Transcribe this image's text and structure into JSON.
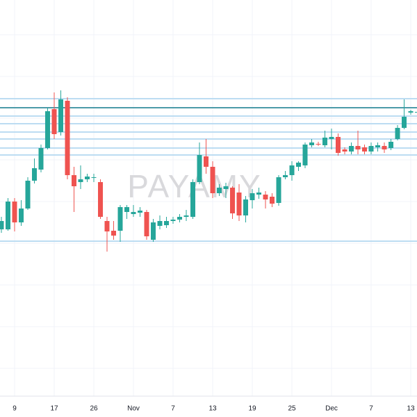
{
  "chart_data": {
    "type": "candlestick",
    "watermark": "PAYAMY",
    "categories": [
      null,
      null,
      "9",
      null,
      null,
      null,
      null,
      null,
      "17",
      null,
      null,
      null,
      null,
      null,
      "26",
      null,
      null,
      null,
      null,
      null,
      "Nov",
      null,
      null,
      null,
      null,
      null,
      "7",
      null,
      null,
      null,
      null,
      null,
      "13",
      null,
      null,
      null,
      null,
      null,
      "19",
      null,
      null,
      null,
      null,
      null,
      "25",
      null,
      null,
      null,
      null,
      null,
      "Dec",
      null,
      null,
      null,
      null,
      null,
      "7",
      null,
      null,
      null,
      null,
      null,
      "13",
      null
    ],
    "open": [
      270,
      270,
      310,
      280,
      300,
      340,
      356,
      387,
      443,
      410,
      455,
      348,
      338,
      342,
      344,
      338,
      282,
      268,
      268,
      295,
      292,
      294,
      295,
      255,
      275,
      276,
      282,
      284,
      288,
      288,
      338,
      375,
      360,
      322,
      328,
      330,
      323,
      290,
      312,
      320,
      320,
      317,
      308,
      345,
      348,
      360,
      362,
      391,
      393,
      391,
      400,
      403,
      385,
      382,
      390,
      388,
      382,
      388,
      390,
      387,
      400,
      416,
      438,
      438
    ],
    "high": [
      288,
      315,
      315,
      312,
      345,
      372,
      392,
      445,
      467,
      470,
      460,
      360,
      362,
      350,
      350,
      342,
      288,
      282,
      305,
      305,
      305,
      302,
      298,
      285,
      290,
      288,
      288,
      292,
      298,
      342,
      395,
      400,
      368,
      335,
      337,
      332,
      335,
      318,
      328,
      330,
      325,
      322,
      348,
      354,
      368,
      368,
      395,
      400,
      396,
      412,
      415,
      408,
      388,
      395,
      412,
      392,
      395,
      395,
      395,
      400,
      420,
      457,
      442,
      442
    ],
    "low": [
      265,
      268,
      267,
      275,
      298,
      336,
      352,
      385,
      400,
      405,
      342,
      295,
      328,
      338,
      338,
      285,
      238,
      255,
      252,
      285,
      288,
      288,
      255,
      252,
      270,
      272,
      278,
      280,
      282,
      285,
      335,
      350,
      315,
      318,
      315,
      285,
      282,
      280,
      300,
      314,
      300,
      302,
      304,
      342,
      340,
      354,
      358,
      388,
      390,
      388,
      385,
      376,
      378,
      378,
      378,
      378,
      378,
      382,
      380,
      384,
      398,
      414,
      435,
      434
    ],
    "close": [
      282,
      310,
      280,
      300,
      340,
      358,
      387,
      440,
      407,
      457,
      348,
      332,
      342,
      346,
      345,
      288,
      267,
      261,
      302,
      302,
      295,
      297,
      260,
      280,
      282,
      282,
      284,
      288,
      290,
      338,
      377,
      360,
      322,
      330,
      332,
      293,
      290,
      313,
      322,
      323,
      313,
      307,
      345,
      348,
      362,
      366,
      392,
      395,
      392,
      402,
      403,
      380,
      382,
      390,
      385,
      382,
      390,
      391,
      385,
      396,
      416,
      432,
      440,
      439
    ],
    "up_color": "#26a69a",
    "down_color": "#ef5350",
    "levels": [
      458,
      445,
      433,
      422,
      410,
      400,
      387,
      377,
      253
    ],
    "level_colors": [
      "#bcdcf2",
      "#4b9aa8",
      "#bcdcf2",
      "#bcdcf2",
      "#bcdcf2",
      "#bcdcf2",
      "#bcdcf2",
      "#bcdcf2",
      "#bcdcf2"
    ],
    "ylim": [
      35,
      600
    ]
  }
}
